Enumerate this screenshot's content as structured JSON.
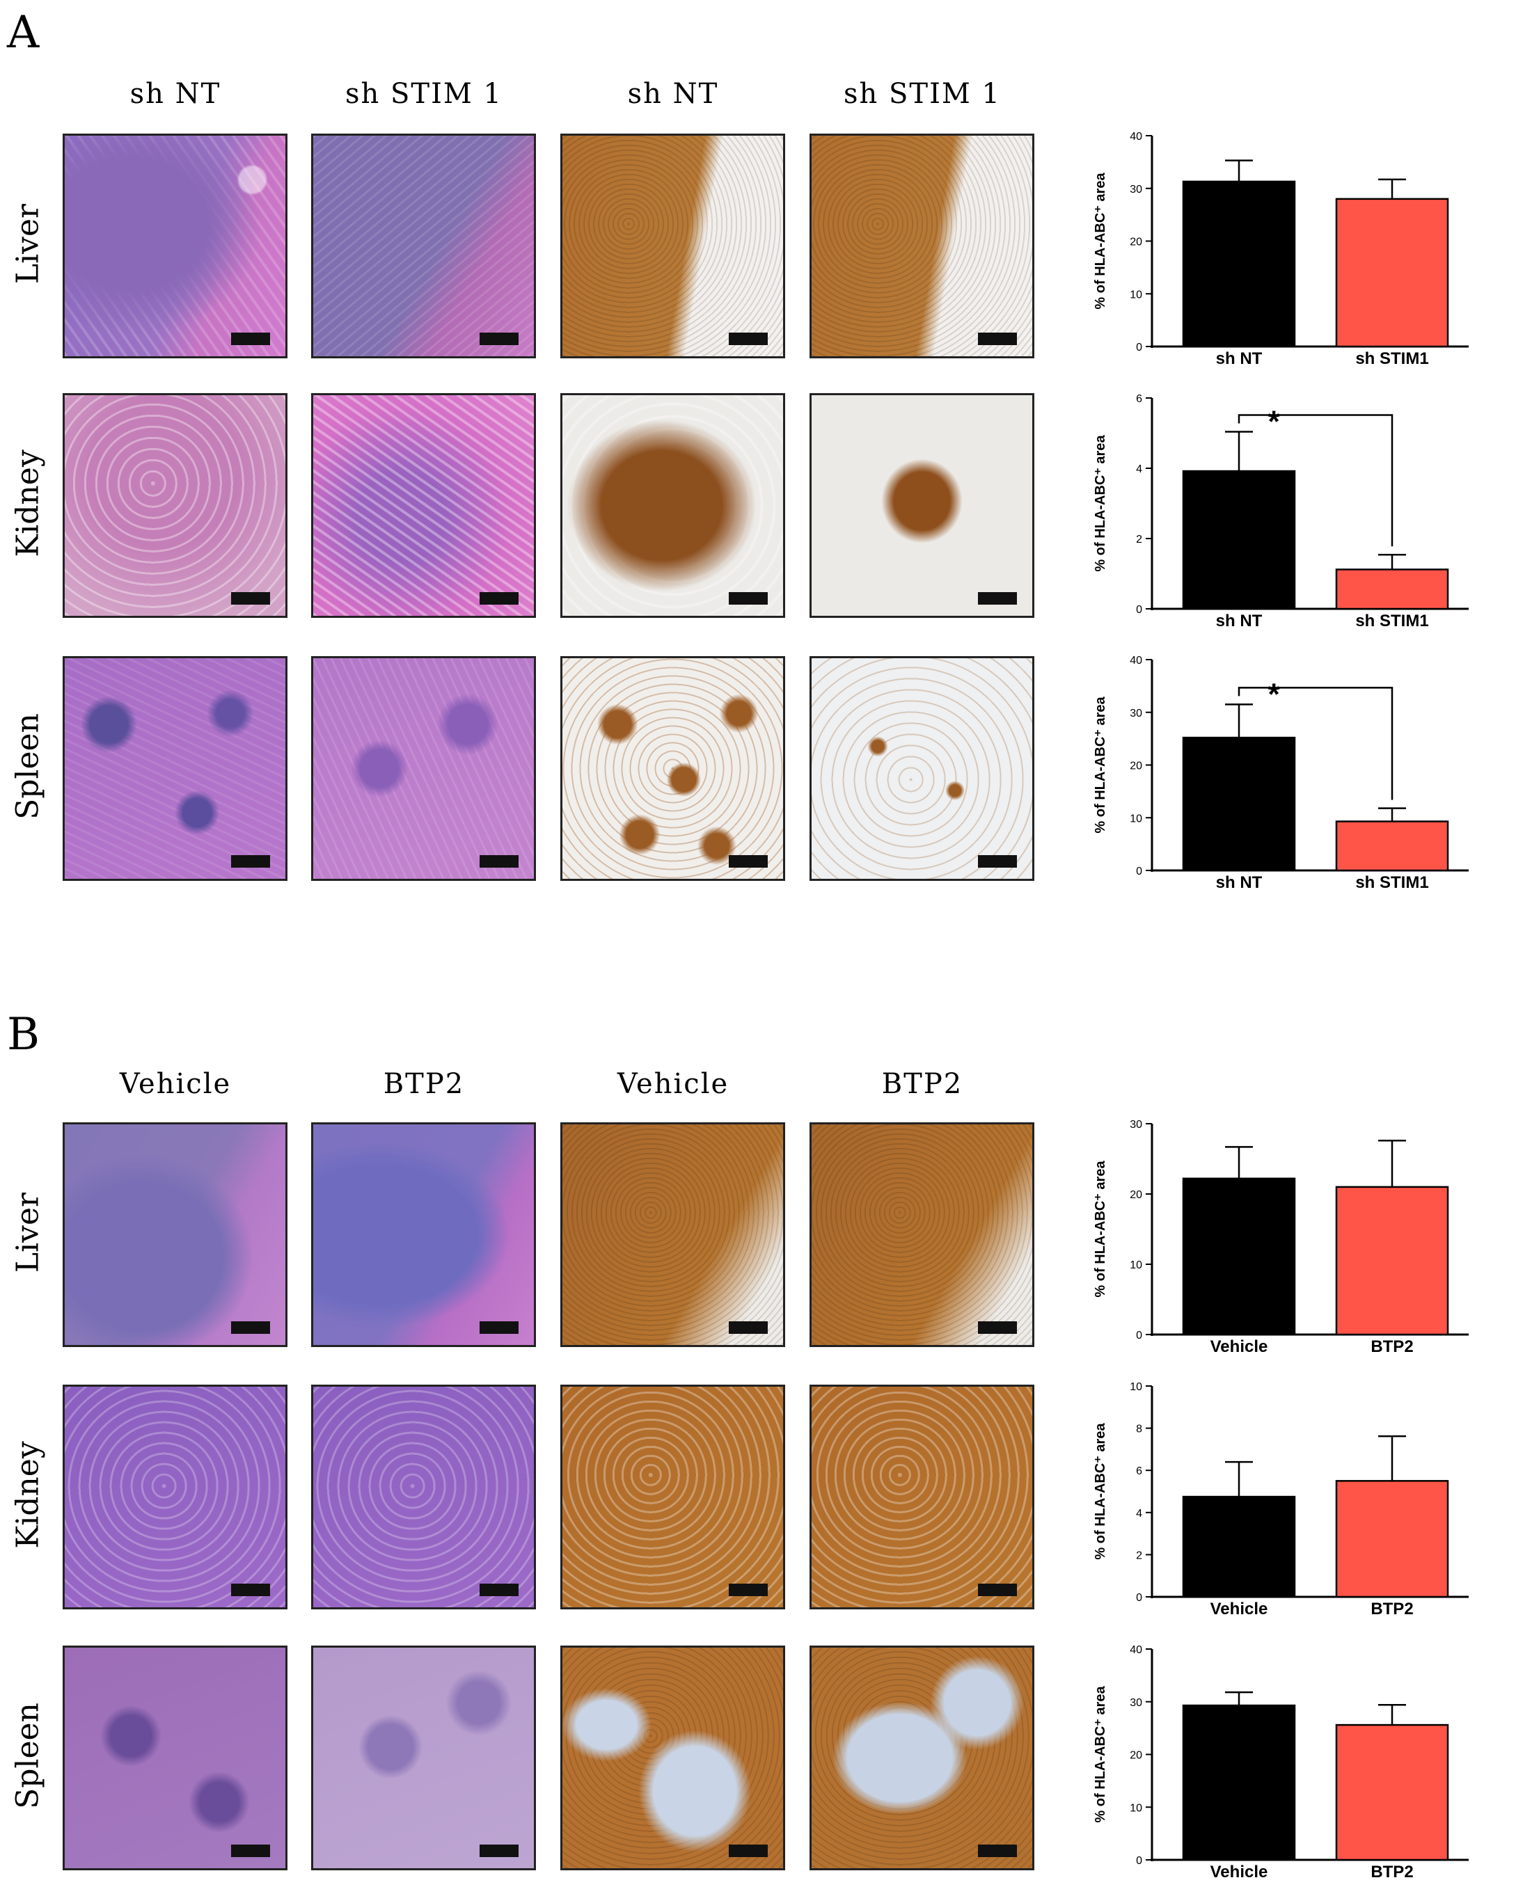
{
  "panels": [
    {
      "letter": "A",
      "column_headers": [
        "sh NT",
        "sh STIM 1",
        "sh NT",
        "sh STIM 1"
      ],
      "rows": [
        {
          "label": "Liver",
          "tiles": [
            "he-liver",
            "he-liver2",
            "ihc-left",
            "ihc-left"
          ]
        },
        {
          "label": "Kidney",
          "tiles": [
            "he-kidney",
            "he-kidney2",
            "ihc-kidney",
            "ihc-kidney2"
          ]
        },
        {
          "label": "Spleen",
          "tiles": [
            "he-spleen",
            "he-spleen2",
            "ihc-spleen",
            "ihc-spleen2"
          ]
        }
      ]
    },
    {
      "letter": "B",
      "column_headers": [
        "Vehicle",
        "BTP2",
        "Vehicle",
        "BTP2"
      ],
      "rows": [
        {
          "label": "Liver",
          "tiles": [
            "he-liverB",
            "he-liverB2",
            "ihc-full",
            "ihc-full"
          ]
        },
        {
          "label": "Kidney",
          "tiles": [
            "he-kidneyB",
            "he-kidneyB",
            "ihc-dense",
            "ihc-dense"
          ]
        },
        {
          "label": "Spleen",
          "tiles": [
            "he-spleenB",
            "he-spleenB2",
            "ihc-spleenB",
            "ihc-spleenB2"
          ]
        }
      ]
    }
  ],
  "colors": {
    "control": "#000000",
    "treatment": "#ff5548"
  },
  "chart_data": [
    {
      "type": "bar",
      "panel": "A",
      "row": "Liver",
      "categories": [
        "sh NT",
        "sh STIM1"
      ],
      "values": [
        31.3,
        28.0
      ],
      "errors": [
        4.0,
        3.7
      ],
      "ylabel": "% of HLA-ABC⁺ area",
      "ylim": [
        0,
        40
      ],
      "yticks": [
        0,
        10,
        20,
        30,
        40
      ],
      "significance": ""
    },
    {
      "type": "bar",
      "panel": "A",
      "row": "Kidney",
      "categories": [
        "sh NT",
        "sh STIM1"
      ],
      "values": [
        3.92,
        1.12
      ],
      "errors": [
        1.12,
        0.42
      ],
      "ylabel": "% of HLA-ABC⁺ area",
      "ylim": [
        0,
        6
      ],
      "yticks": [
        0,
        2,
        4,
        6
      ],
      "significance": "*"
    },
    {
      "type": "bar",
      "panel": "A",
      "row": "Spleen",
      "categories": [
        "sh NT",
        "sh STIM1"
      ],
      "values": [
        25.2,
        9.3
      ],
      "errors": [
        6.3,
        2.5
      ],
      "ylabel": "% of HLA-ABC⁺ area",
      "ylim": [
        0,
        40
      ],
      "yticks": [
        0,
        10,
        20,
        30,
        40
      ],
      "significance": "*"
    },
    {
      "type": "bar",
      "panel": "B",
      "row": "Liver",
      "categories": [
        "Vehicle",
        "BTP2"
      ],
      "values": [
        22.2,
        21.0
      ],
      "errors": [
        4.5,
        6.6
      ],
      "ylabel": "% of HLA-ABC⁺ area",
      "ylim": [
        0,
        30
      ],
      "yticks": [
        0,
        10,
        20,
        30
      ],
      "significance": ""
    },
    {
      "type": "bar",
      "panel": "B",
      "row": "Kidney",
      "categories": [
        "Vehicle",
        "BTP2"
      ],
      "values": [
        4.75,
        5.5
      ],
      "errors": [
        1.65,
        2.12
      ],
      "ylabel": "% of HLA-ABC⁺ area",
      "ylim": [
        0,
        10
      ],
      "yticks": [
        0,
        2,
        4,
        6,
        8,
        10
      ],
      "significance": ""
    },
    {
      "type": "bar",
      "panel": "B",
      "row": "Spleen",
      "categories": [
        "Vehicle",
        "BTP2"
      ],
      "values": [
        29.3,
        25.6
      ],
      "errors": [
        2.5,
        3.8
      ],
      "ylabel": "% of HLA-ABC⁺ area",
      "ylim": [
        0,
        40
      ],
      "yticks": [
        0,
        10,
        20,
        30,
        40
      ],
      "significance": ""
    }
  ]
}
